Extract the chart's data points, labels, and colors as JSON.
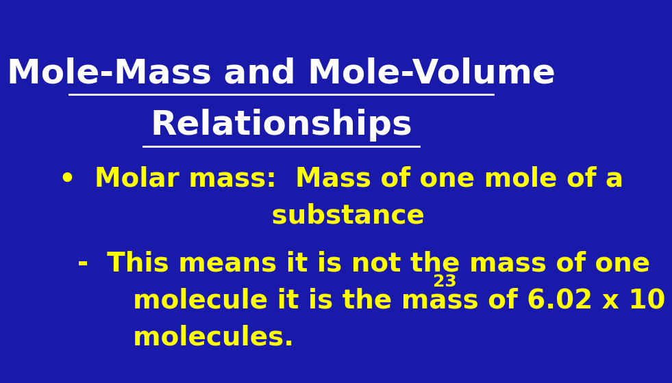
{
  "background_color": "#1a1aaa",
  "title_line1": "Mole-Mass and Mole-Volume",
  "title_line2": "Relationships",
  "title_color": "#ffffff",
  "title_fontsize": 36,
  "bullet_color": "#ffff00",
  "bullet_fontsize": 28,
  "bullet_text_line1": "•  Molar mass:  Mass of one mole of a",
  "bullet_text_line2": "                       substance",
  "dash_line1": "  -  This means it is not the mass of one",
  "dash_line2": "        molecule it is the mass of 6.02 x 10",
  "dash_line2_superscript": "23",
  "dash_line3": "        molecules."
}
